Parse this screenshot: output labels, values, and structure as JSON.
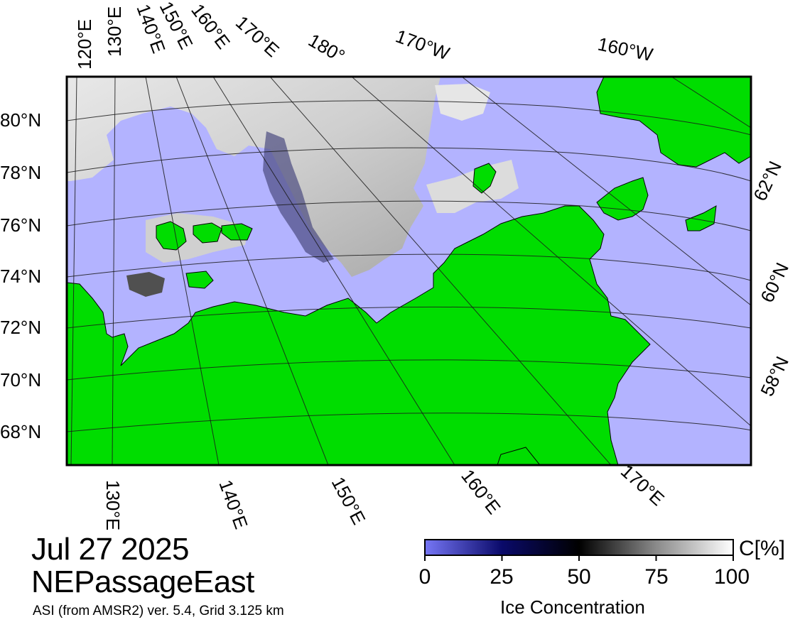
{
  "date": "Jul 27 2025",
  "region": "NEPassageEast",
  "source": "ASI (from AMSR2) ver. 5.4,  Grid 3.125 km",
  "colors": {
    "ocean": "#b3b3ff",
    "land": "#00dd00",
    "ice_low": "#6f6ff5",
    "ice_mid": "#000000",
    "ice_high": "#ffffff"
  },
  "top_labels": [
    "120°E",
    "130°E",
    "140°E",
    "150°E",
    "160°E",
    "170°E",
    "180°",
    "170°W",
    "160°W"
  ],
  "left_labels": [
    "80°N",
    "78°N",
    "76°N",
    "74°N",
    "72°N",
    "70°N",
    "68°N"
  ],
  "right_labels": [
    "62°N",
    "60°N",
    "58°N"
  ],
  "bottom_labels": [
    "130°E",
    "140°E",
    "150°E",
    "160°E",
    "170°E"
  ],
  "colorbar": {
    "title": "Ice Concentration",
    "unit": "C[%]",
    "ticks": [
      "0",
      "25",
      "50",
      "75",
      "100"
    ]
  }
}
